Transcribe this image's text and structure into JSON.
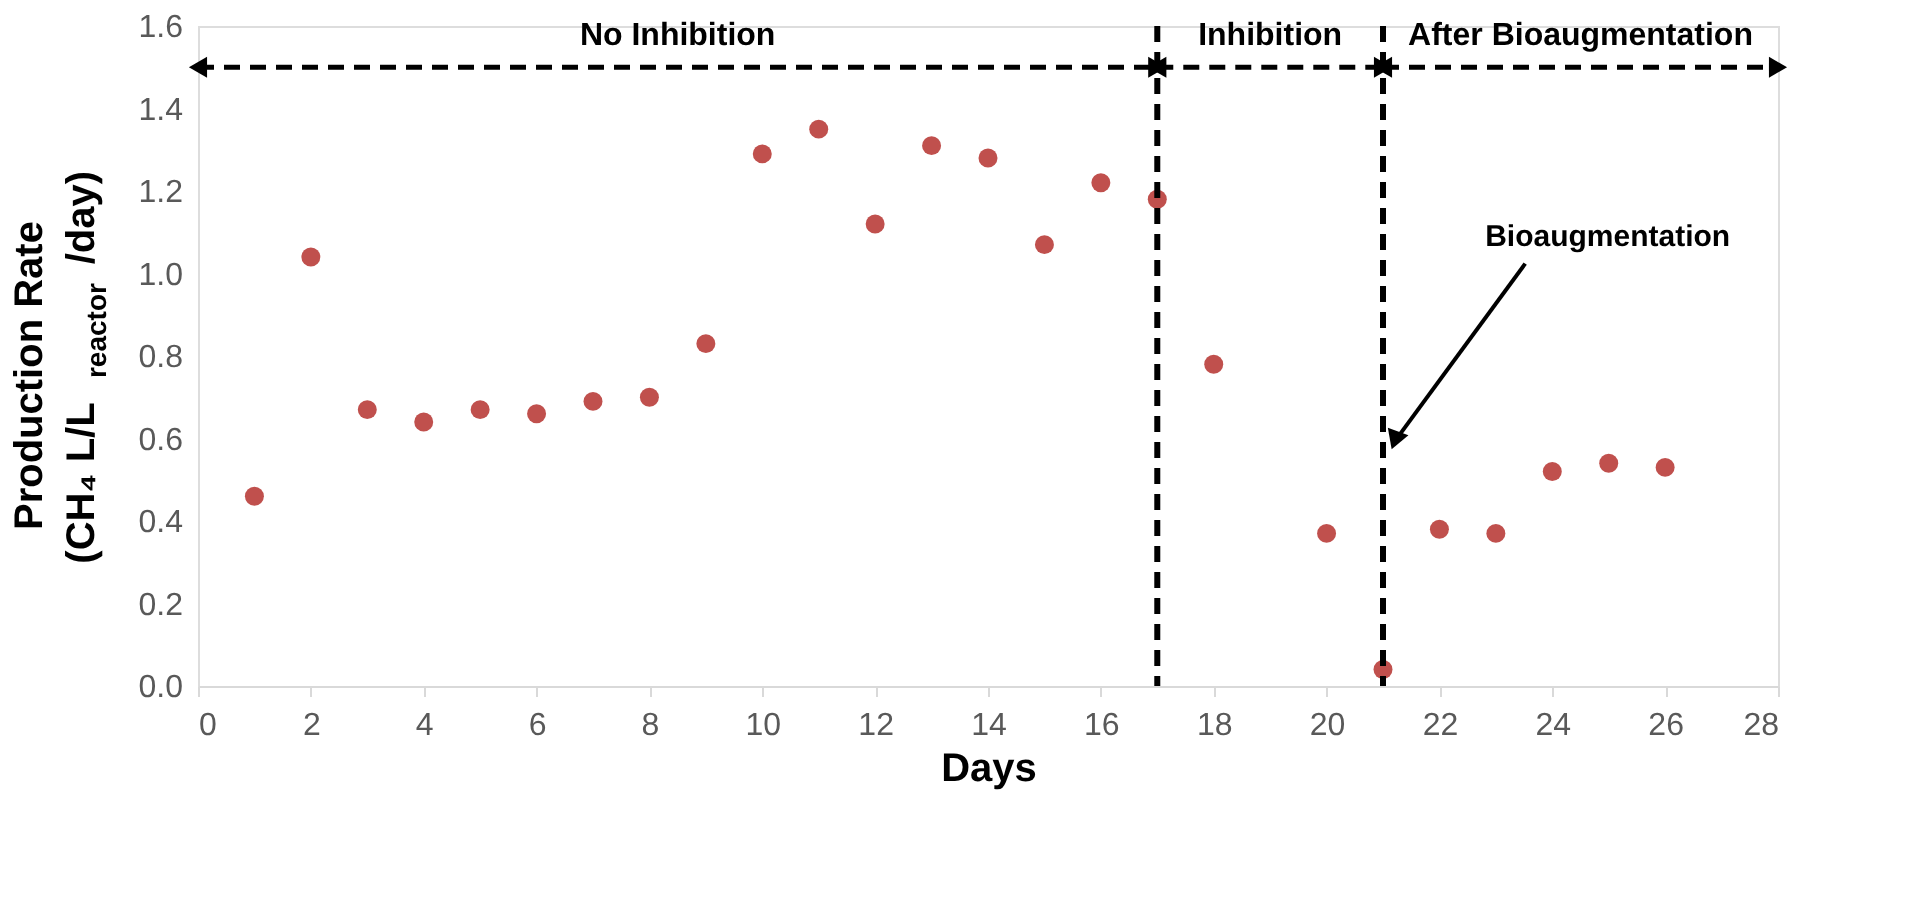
{
  "chart_data": {
    "type": "scatter",
    "xlabel": "Days",
    "ylabel": "Production Rate\n(CH₄ L/L$_{reactor}$/day)",
    "x": [
      1,
      2,
      3,
      4,
      5,
      6,
      7,
      8,
      9,
      10,
      11,
      12,
      13,
      14,
      15,
      16,
      17,
      18,
      20,
      21,
      22,
      23,
      24,
      25,
      26
    ],
    "series": [
      {
        "color": "#c0504d",
        "values": [
          0.46,
          1.04,
          0.67,
          0.64,
          0.67,
          0.66,
          0.69,
          0.7,
          0.83,
          1.29,
          1.35,
          1.12,
          1.31,
          1.28,
          1.07,
          1.22,
          1.18,
          0.78,
          0.37,
          0.04,
          0.38,
          0.37,
          0.52,
          0.54,
          0.53
        ]
      }
    ],
    "marker": "circle",
    "xlim": [
      0,
      28
    ],
    "xticks": [
      0,
      2,
      4,
      6,
      8,
      10,
      12,
      14,
      16,
      18,
      20,
      22,
      24,
      26,
      28
    ],
    "ylim": [
      0,
      1.6
    ],
    "yticks": [
      {
        "value": 0,
        "label": "0.0"
      },
      0.2,
      0.4,
      0.6,
      0.8,
      {
        "value": 1,
        "label": "1.0"
      },
      1.2,
      1.4,
      1.6
    ],
    "grid": false,
    "ref_lines": [
      {
        "axis": "x",
        "value": 17,
        "color": "#000000",
        "line_style": "dashed"
      },
      {
        "axis": "x",
        "value": 21,
        "color": "#000000",
        "line_style": "dashed"
      }
    ],
    "annotations": [
      "No Inhibition",
      "Inhibition",
      "After Bioaugmentation",
      "Bioaugmentation"
    ]
  }
}
